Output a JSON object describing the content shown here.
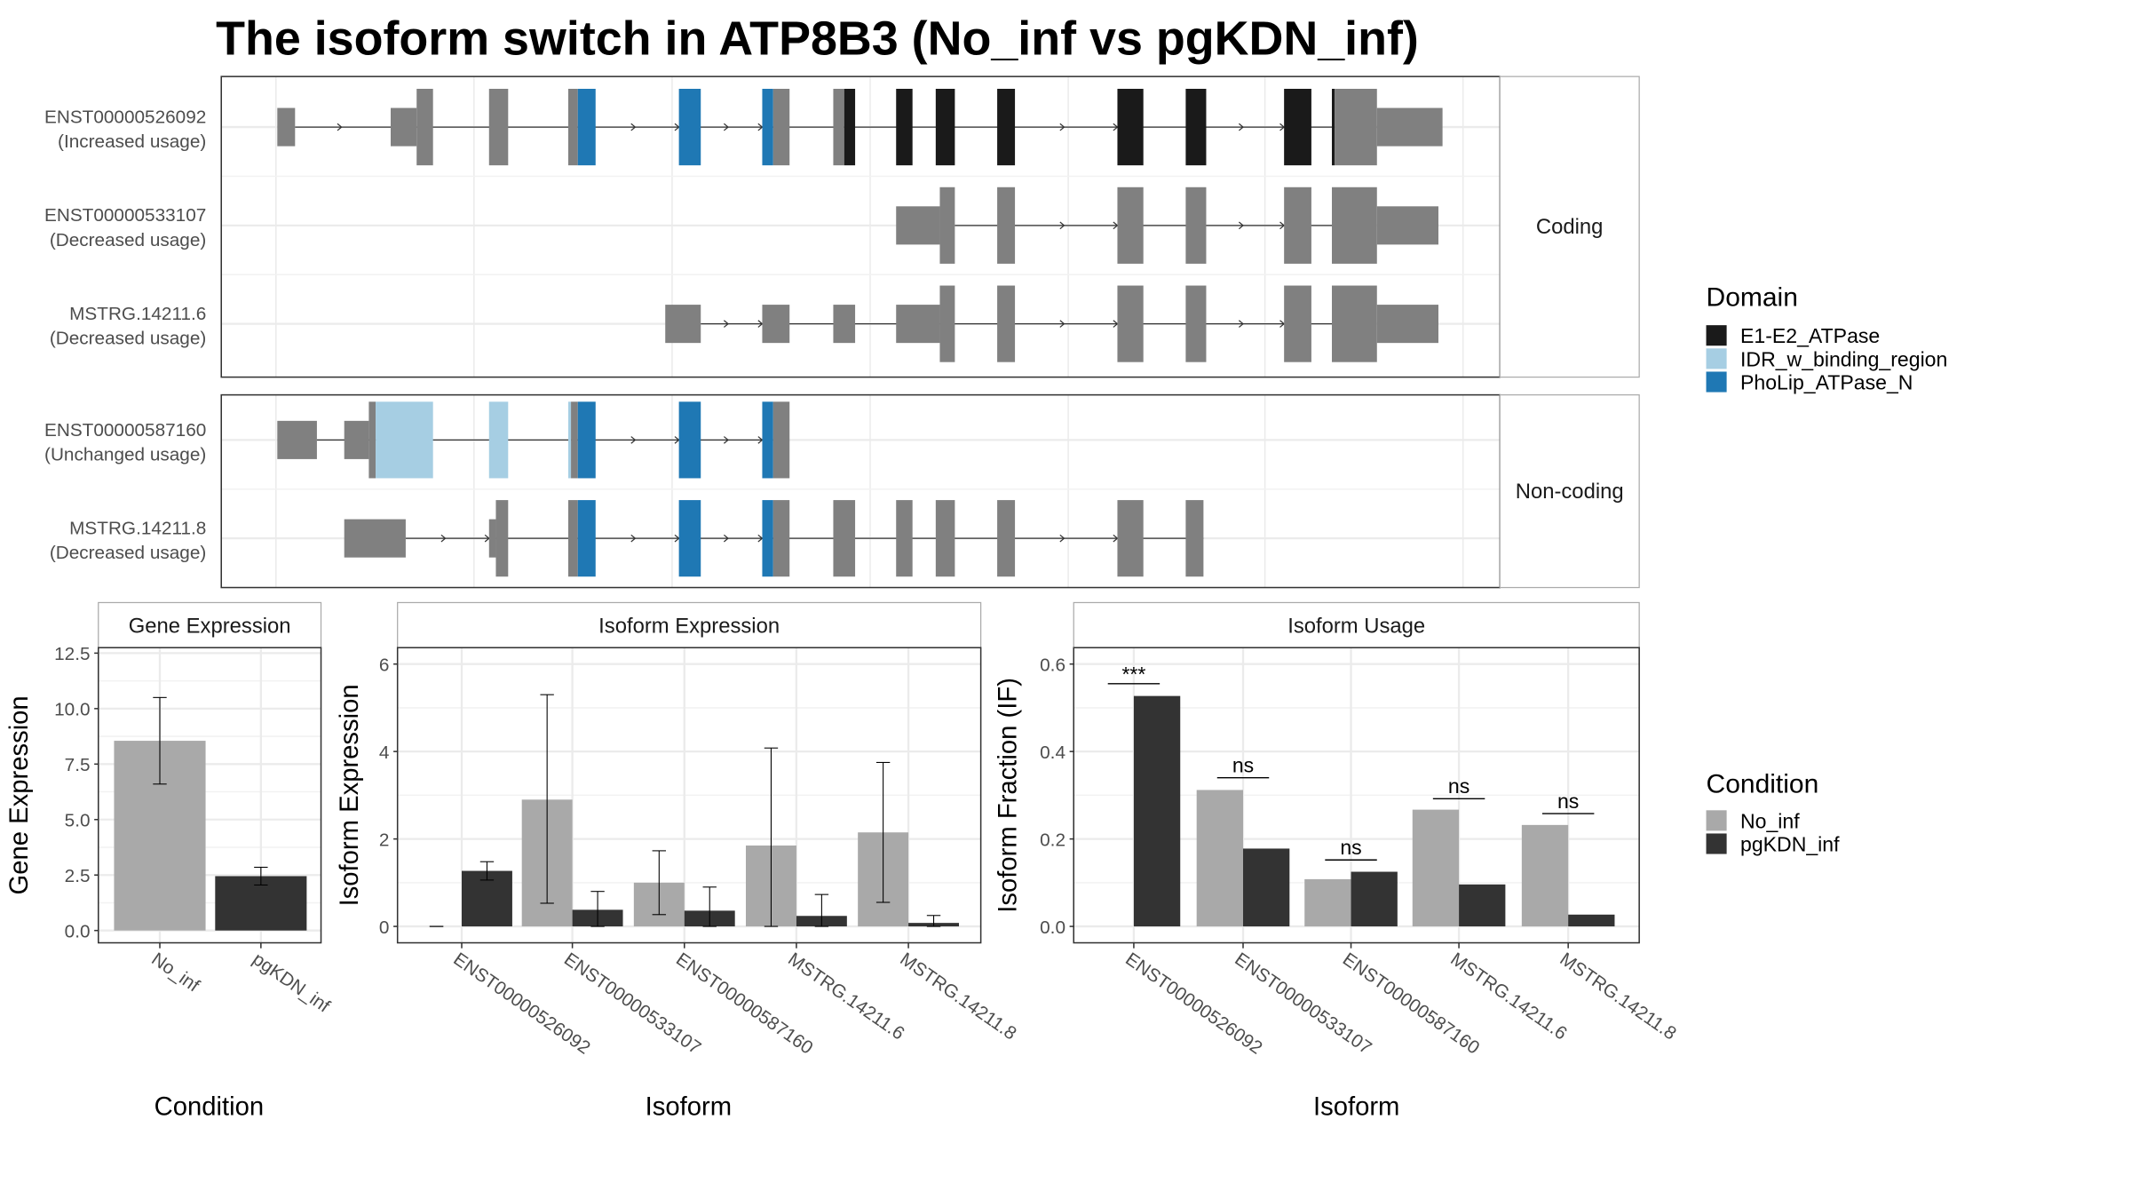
{
  "title": "The isoform switch in ATP8B3 (No_inf vs pgKDN_inf)",
  "transcript_plot": {
    "panels": [
      {
        "label": "Coding",
        "transcripts": [
          {
            "id": "ENST00000526092",
            "usage": "(Increased usage)"
          },
          {
            "id": "ENST00000533107",
            "usage": "(Decreased usage)"
          },
          {
            "id": "MSTRG.14211.6",
            "usage": "(Decreased usage)"
          }
        ]
      },
      {
        "label": "Non-coding",
        "transcripts": [
          {
            "id": "ENST00000587160",
            "usage": "(Unchanged usage)"
          },
          {
            "id": "MSTRG.14211.8",
            "usage": "(Decreased usage)"
          }
        ]
      }
    ],
    "domain_legend": {
      "title": "Domain",
      "items": [
        {
          "label": "E1-E2_ATPase",
          "color": "#1a1a1a"
        },
        {
          "label": "IDR_w_binding_region",
          "color": "#a6cee3"
        },
        {
          "label": "PhoLip_ATPase_N",
          "color": "#1f78b4"
        }
      ]
    },
    "exon_color": "#808080"
  },
  "condition_legend": {
    "title": "Condition",
    "items": [
      {
        "label": "No_inf",
        "color": "#a9a9a9"
      },
      {
        "label": "pgKDN_inf",
        "color": "#333333"
      }
    ]
  },
  "chart_data": [
    {
      "type": "bar",
      "title": "Gene Expression",
      "xlabel": "Condition",
      "ylabel": "Gene Expression",
      "categories": [
        "No_inf",
        "pgKDN_inf"
      ],
      "values": [
        8.55,
        2.45
      ],
      "error_low": [
        6.6,
        2.05
      ],
      "error_high": [
        10.5,
        2.85
      ],
      "ylim": [
        0,
        12.5
      ],
      "yticks": [
        "0.0",
        "2.5",
        "5.0",
        "7.5",
        "10.0",
        "12.5"
      ],
      "ytick_values": [
        0,
        2.5,
        5,
        7.5,
        10,
        12.5
      ],
      "grid": true
    },
    {
      "type": "bar",
      "title": "Isoform Expression",
      "xlabel": "Isoform",
      "ylabel": "Isoform Expression",
      "categories": [
        "ENST00000526092",
        "ENST00000533107",
        "ENST00000587160",
        "MSTRG.14211.6",
        "MSTRG.14211.8"
      ],
      "series": [
        {
          "name": "No_inf",
          "values": [
            0,
            2.9,
            1.0,
            1.85,
            2.15
          ],
          "error_low": [
            0,
            0.53,
            0.27,
            0,
            0.55
          ],
          "error_high": [
            0,
            5.3,
            1.73,
            4.08,
            3.75
          ]
        },
        {
          "name": "pgKDN_inf",
          "values": [
            1.27,
            0.38,
            0.36,
            0.24,
            0.08
          ],
          "error_low": [
            1.06,
            0,
            0,
            0,
            0
          ],
          "error_high": [
            1.48,
            0.8,
            0.9,
            0.73,
            0.25
          ]
        }
      ],
      "ylim": [
        0,
        6.3
      ],
      "yticks": [
        "0",
        "2",
        "4",
        "6"
      ],
      "ytick_values": [
        0,
        2,
        4,
        6
      ],
      "grid": true
    },
    {
      "type": "bar",
      "title": "Isoform Usage",
      "xlabel": "Isoform",
      "ylabel": "Isoform Fraction (IF)",
      "categories": [
        "ENST00000526092",
        "ENST00000533107",
        "ENST00000587160",
        "MSTRG.14211.6",
        "MSTRG.14211.8"
      ],
      "series": [
        {
          "name": "No_inf",
          "values": [
            0,
            0.312,
            0.108,
            0.267,
            0.232
          ]
        },
        {
          "name": "pgKDN_inf",
          "values": [
            0.527,
            0.178,
            0.125,
            0.096,
            0.027
          ]
        }
      ],
      "significance": [
        "***",
        "ns",
        "ns",
        "ns",
        "ns"
      ],
      "significance_level": [
        0.555,
        0.34,
        0.152,
        0.292,
        0.258
      ],
      "ylim": [
        0,
        0.63
      ],
      "yticks": [
        "0.0",
        "0.2",
        "0.4",
        "0.6"
      ],
      "ytick_values": [
        0,
        0.2,
        0.4,
        0.6
      ],
      "grid": true
    }
  ]
}
